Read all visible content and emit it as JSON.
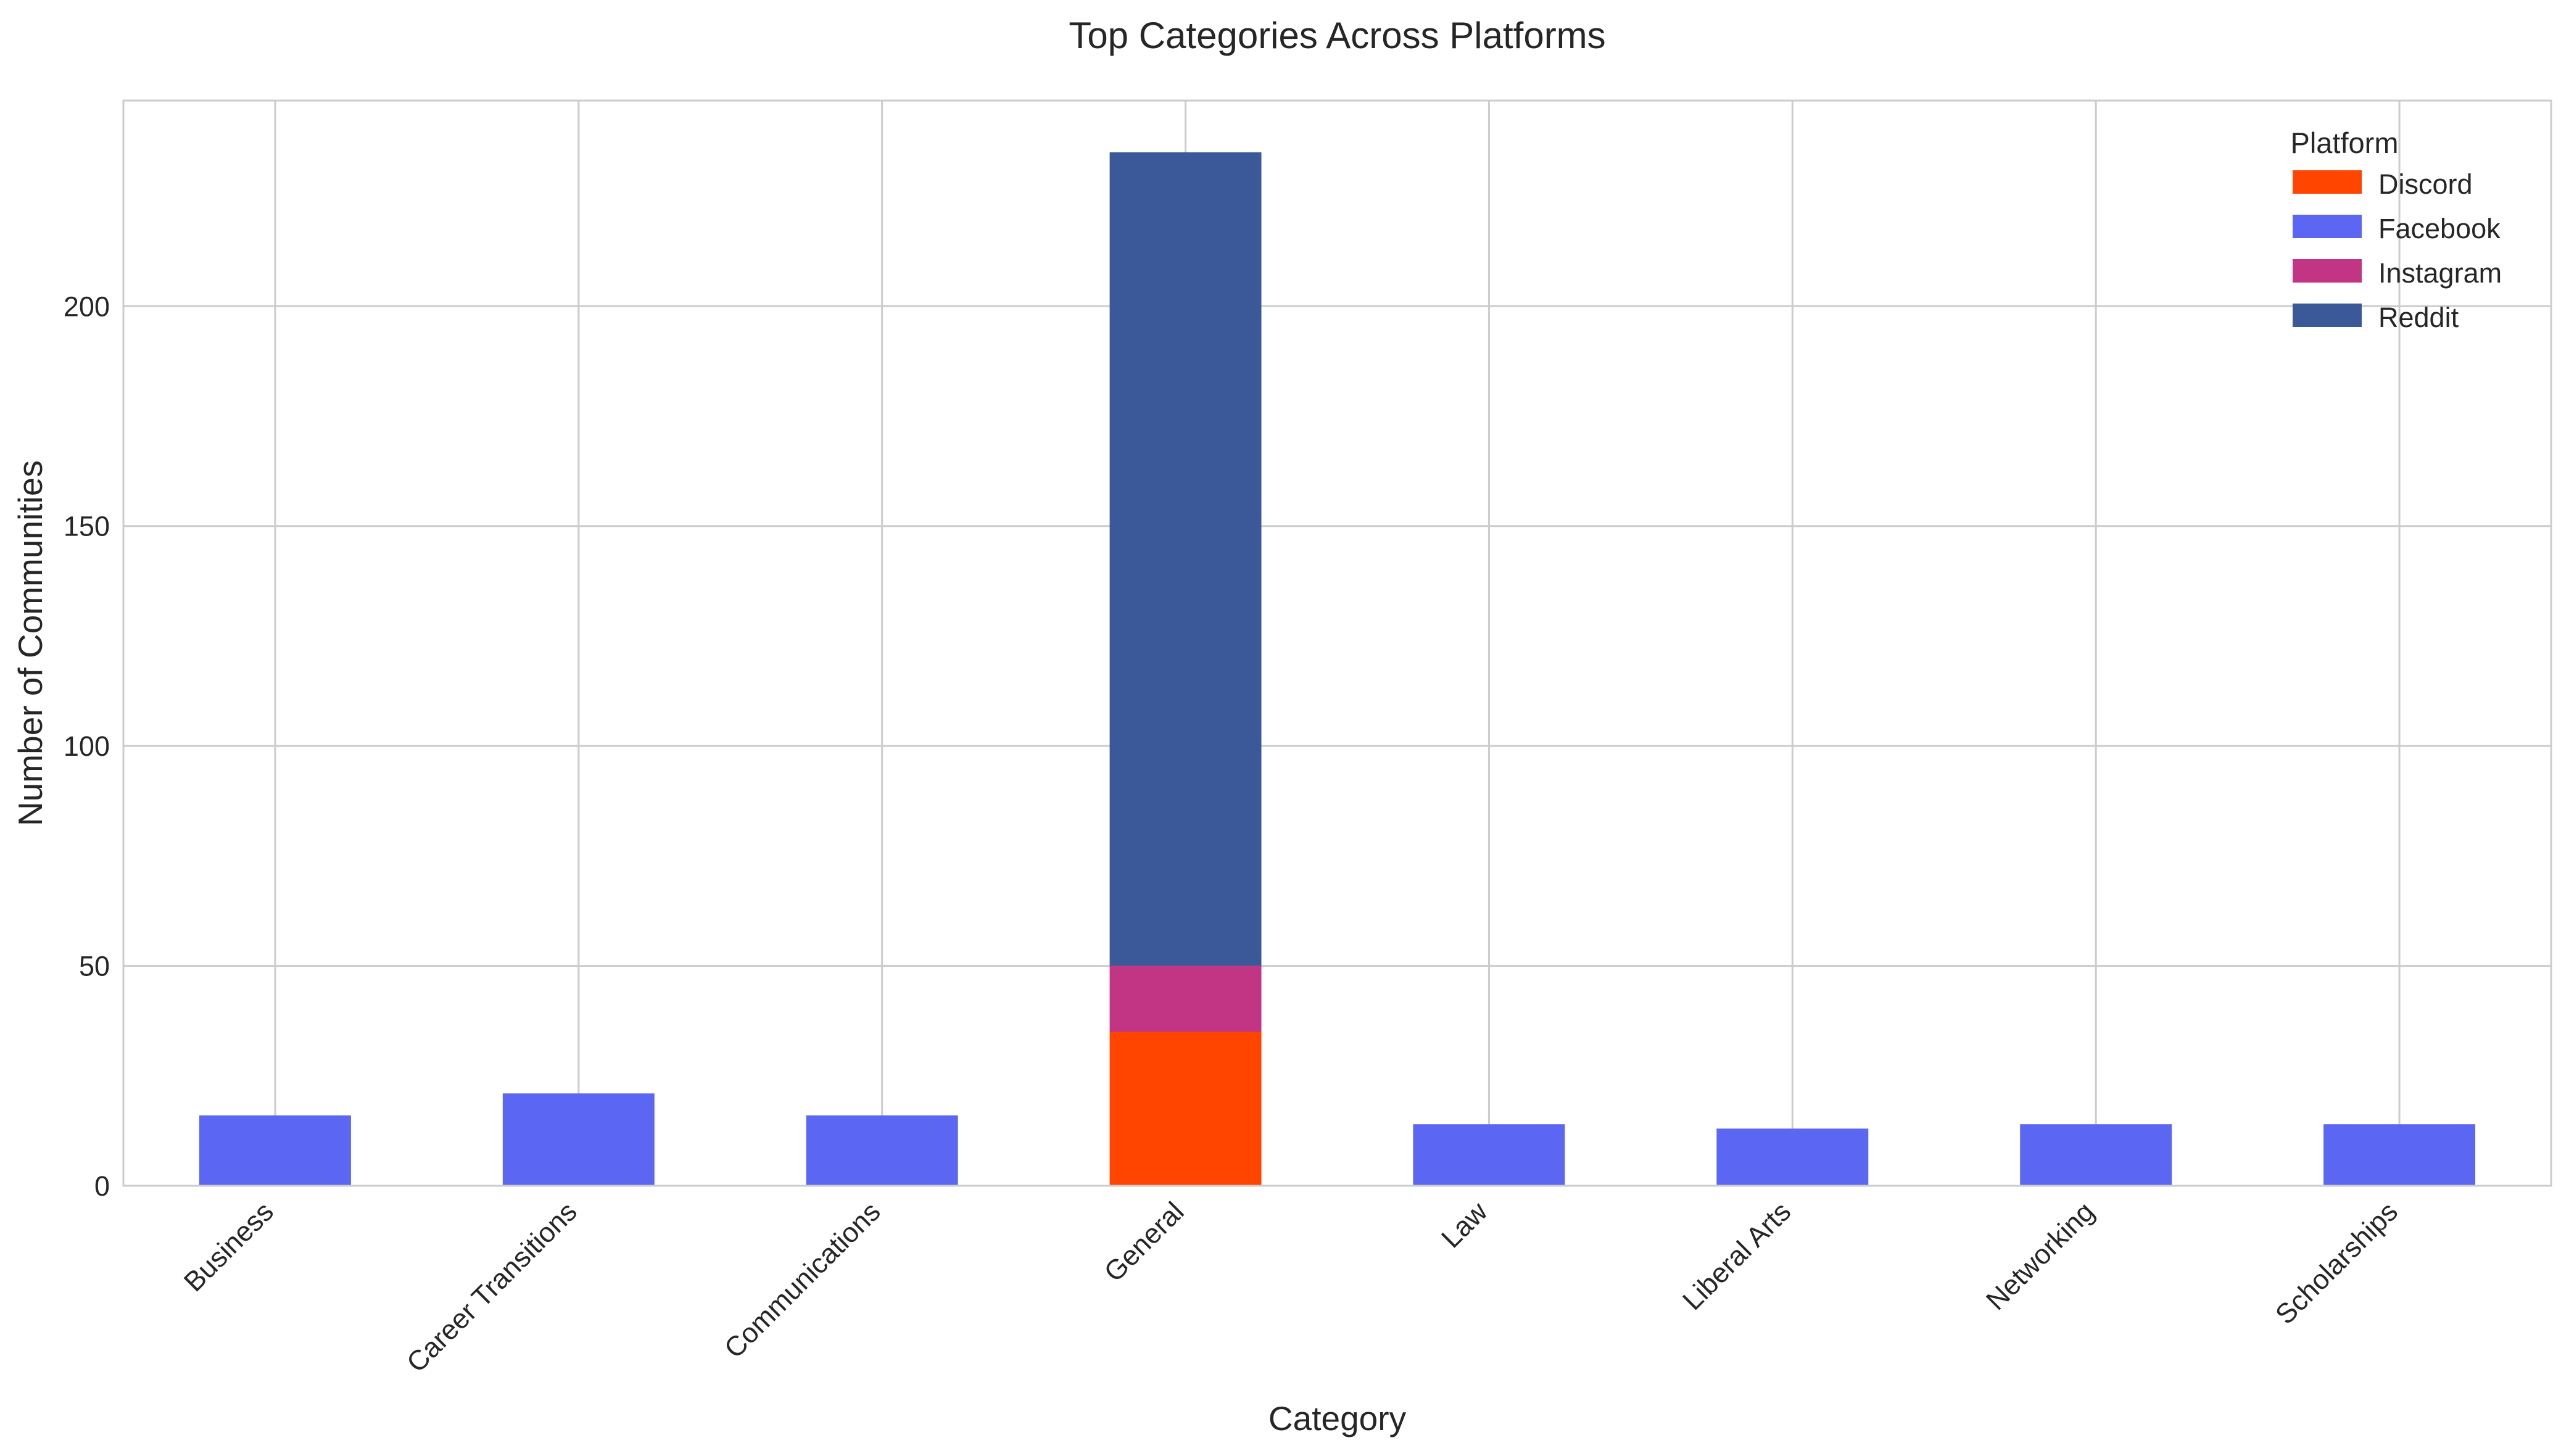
{
  "chart_data": {
    "type": "bar",
    "stacked": true,
    "title": "Top Categories Across Platforms",
    "xlabel": "Category",
    "ylabel": "Number of Communities",
    "categories": [
      "Business",
      "Career Transitions",
      "Communications",
      "General",
      "Law",
      "Liberal Arts",
      "Networking",
      "Scholarships"
    ],
    "series": [
      {
        "name": "Discord",
        "color": "#ff4500",
        "values": [
          0,
          0,
          0,
          35,
          0,
          0,
          0,
          0
        ]
      },
      {
        "name": "Facebook",
        "color": "#5b67f2",
        "values": [
          16,
          21,
          16,
          0,
          14,
          13,
          14,
          14
        ]
      },
      {
        "name": "Instagram",
        "color": "#c13584",
        "values": [
          0,
          0,
          0,
          15,
          0,
          0,
          0,
          0
        ]
      },
      {
        "name": "Reddit",
        "color": "#3b5998",
        "values": [
          0,
          0,
          0,
          185,
          0,
          0,
          0,
          0
        ]
      }
    ],
    "ylim": [
      0,
      246.75
    ],
    "yticks": [
      0,
      50,
      100,
      150,
      200
    ],
    "grid": true,
    "legend": {
      "title": "Platform",
      "placement": "top-right"
    }
  }
}
